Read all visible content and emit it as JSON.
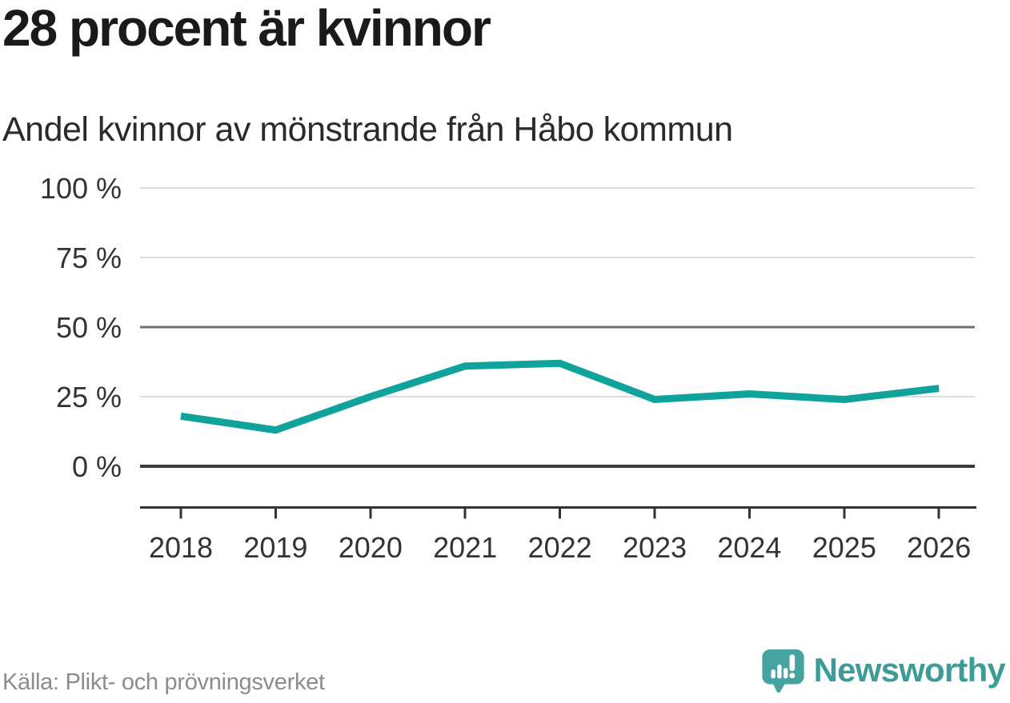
{
  "header": {
    "title": "28 procent är kvinnor",
    "subtitle": "Andel kvinnor av mönstrande från Håbo kommun"
  },
  "footer": {
    "source": "Källa: Plikt- och prövningsverket",
    "brand_name": "Newsworthy"
  },
  "icons": {
    "brand_mark": "bar-chart-exclamation-speech-bubble-icon"
  },
  "colors": {
    "line": "#10a39b",
    "grid_light": "#dcdcdc",
    "grid_mid": "#6e6e6e",
    "grid_zero": "#3b3b3b",
    "axis": "#333333",
    "tick_label": "#333333",
    "title_text": "#1a1a1a",
    "source_text": "#8c8c8c",
    "brand_teal": "#47a3a0",
    "brand_text_teal": "#3d9c98"
  },
  "chart_data": {
    "type": "line",
    "title": "28 procent är kvinnor",
    "subtitle": "Andel kvinnor av mönstrande från Håbo kommun",
    "categories": [
      "2018",
      "2019",
      "2020",
      "2021",
      "2022",
      "2023",
      "2024",
      "2025",
      "2026"
    ],
    "series": [
      {
        "name": "Andel kvinnor av mönstrande",
        "values": [
          18,
          13,
          25,
          36,
          37,
          24,
          26,
          24,
          28
        ]
      }
    ],
    "unit": "%",
    "xlabel": "",
    "ylabel": "",
    "ylim": [
      0,
      100
    ],
    "yticks": [
      0,
      25,
      50,
      75,
      100
    ],
    "ytick_labels": [
      "0 %",
      "25 %",
      "50 %",
      "75 %",
      "100 %"
    ],
    "grid": true,
    "emphasized_gridline": 50,
    "baseline_gridline": 0,
    "legend": "none",
    "source": "Källa: Plikt- och prövningsverket"
  }
}
